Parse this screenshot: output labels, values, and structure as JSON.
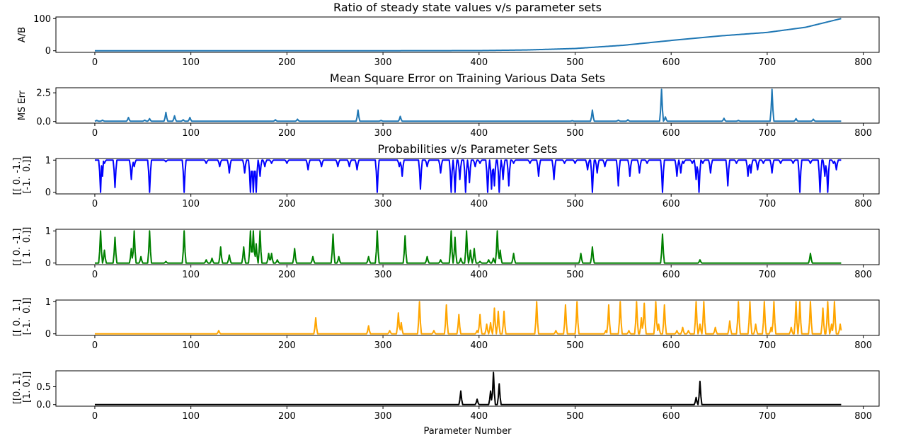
{
  "chart_data": [
    {
      "type": "line",
      "title": "Ratio of steady state values v/s parameter sets",
      "ylabel": [
        "A/B"
      ],
      "xlabel": "",
      "xlim": [
        0,
        777
      ],
      "ylim": [
        0,
        100
      ],
      "yticks": [
        0,
        100
      ],
      "xticks": [
        0,
        100,
        200,
        300,
        400,
        500,
        600,
        700,
        800
      ],
      "series": [
        {
          "color": "#1f77b4",
          "kind": "smooth",
          "points": [
            [
              0,
              0
            ],
            [
              300,
              0
            ],
            [
              400,
              0.5
            ],
            [
              450,
              2.5
            ],
            [
              500,
              7
            ],
            [
              550,
              17
            ],
            [
              600,
              32
            ],
            [
              650,
              46
            ],
            [
              700,
              57
            ],
            [
              740,
              73
            ],
            [
              777,
              100
            ]
          ]
        }
      ]
    },
    {
      "type": "line",
      "title": "Mean Square Error on Training Various Data Sets",
      "ylabel": [
        "MS Err"
      ],
      "xlabel": "",
      "xlim": [
        0,
        777
      ],
      "ylim": [
        0,
        2.8
      ],
      "yticks": [
        0.0,
        2.5
      ],
      "ytick_labels": [
        "0.0",
        "2.5"
      ],
      "xticks": [
        0,
        100,
        200,
        300,
        400,
        500,
        600,
        700,
        800
      ],
      "series": [
        {
          "color": "#1f77b4",
          "kind": "spikes",
          "baseline": 0.03,
          "spikes": [
            [
              2,
              0.1
            ],
            [
              8,
              0.12
            ],
            [
              35,
              0.35
            ],
            [
              52,
              0.12
            ],
            [
              57,
              0.25
            ],
            [
              74,
              0.8
            ],
            [
              83,
              0.5
            ],
            [
              92,
              0.15
            ],
            [
              99,
              0.35
            ],
            [
              188,
              0.15
            ],
            [
              211,
              0.2
            ],
            [
              274,
              1.0
            ],
            [
              298,
              0.1
            ],
            [
              318,
              0.45
            ],
            [
              497,
              0.07
            ],
            [
              518,
              1.0
            ],
            [
              545,
              0.12
            ],
            [
              555,
              0.15
            ],
            [
              590,
              2.8
            ],
            [
              594,
              0.4
            ],
            [
              655,
              0.28
            ],
            [
              670,
              0.1
            ],
            [
              705,
              2.8
            ],
            [
              730,
              0.25
            ],
            [
              748,
              0.2
            ]
          ]
        }
      ]
    },
    {
      "type": "line",
      "title": "Probabilities v/s Parameter Sets",
      "ylabel": [
        "[[ 0. -1.]",
        " [-1.  0.]]"
      ],
      "xlabel": "",
      "xlim": [
        0,
        777
      ],
      "ylim": [
        0,
        1
      ],
      "yticks": [
        0,
        1
      ],
      "xticks": [
        0,
        100,
        200,
        300,
        400,
        500,
        600,
        700,
        800
      ],
      "series": [
        {
          "color": "#0000ff",
          "kind": "spikes",
          "baseline": 1.0,
          "spikes": [
            [
              6,
              0
            ],
            [
              8,
              0.5
            ],
            [
              10,
              0.9
            ],
            [
              21,
              0.15
            ],
            [
              38,
              0.4
            ],
            [
              41,
              0.8
            ],
            [
              57,
              0
            ],
            [
              74,
              0.95
            ],
            [
              93,
              0
            ],
            [
              116,
              0.9
            ],
            [
              130,
              0.8
            ],
            [
              140,
              0.6
            ],
            [
              156,
              0.6
            ],
            [
              162,
              0
            ],
            [
              165,
              0
            ],
            [
              168,
              0
            ],
            [
              172,
              0.5
            ],
            [
              177,
              0.8
            ],
            [
              184,
              0.9
            ],
            [
              200,
              0.9
            ],
            [
              222,
              0.7
            ],
            [
              236,
              0.8
            ],
            [
              253,
              0.8
            ],
            [
              265,
              0.8
            ],
            [
              273,
              0.7
            ],
            [
              294,
              0
            ],
            [
              317,
              0.8
            ],
            [
              320,
              0.5
            ],
            [
              339,
              0.1
            ],
            [
              346,
              0.8
            ],
            [
              360,
              0.6
            ],
            [
              371,
              0
            ],
            [
              375,
              0
            ],
            [
              380,
              0.4
            ],
            [
              386,
              0
            ],
            [
              390,
              0.3
            ],
            [
              396,
              0.8
            ],
            [
              401,
              0.9
            ],
            [
              409,
              0
            ],
            [
              413,
              0.1
            ],
            [
              416,
              0.2
            ],
            [
              421,
              0
            ],
            [
              425,
              0.4
            ],
            [
              431,
              0.2
            ],
            [
              436,
              0.9
            ],
            [
              453,
              0.9
            ],
            [
              462,
              0.5
            ],
            [
              478,
              0.4
            ],
            [
              489,
              0.9
            ],
            [
              500,
              0.9
            ],
            [
              513,
              0.7
            ],
            [
              518,
              0
            ],
            [
              523,
              0.6
            ],
            [
              531,
              0.8
            ],
            [
              545,
              0.2
            ],
            [
              557,
              0.5
            ],
            [
              567,
              0.6
            ],
            [
              575,
              0.9
            ],
            [
              591,
              0
            ],
            [
              606,
              0.5
            ],
            [
              610,
              0.6
            ],
            [
              613,
              0.9
            ],
            [
              622,
              0.9
            ],
            [
              626,
              0.4
            ],
            [
              629,
              0
            ],
            [
              633,
              0.9
            ],
            [
              641,
              0.6
            ],
            [
              659,
              0.2
            ],
            [
              668,
              0.9
            ],
            [
              680,
              0.5
            ],
            [
              683,
              0.6
            ],
            [
              690,
              0.7
            ],
            [
              696,
              0.9
            ],
            [
              705,
              0.6
            ],
            [
              714,
              0.9
            ],
            [
              727,
              0.9
            ],
            [
              734,
              0
            ],
            [
              745,
              0.9
            ],
            [
              755,
              0
            ],
            [
              760,
              0.5
            ],
            [
              763,
              0
            ],
            [
              769,
              0.9
            ],
            [
              772,
              0.7
            ]
          ]
        }
      ]
    },
    {
      "type": "line",
      "title": "",
      "ylabel": [
        "[[ 0. -1.]",
        " [ 1.  0.]]"
      ],
      "xlabel": "",
      "xlim": [
        0,
        777
      ],
      "ylim": [
        0,
        1
      ],
      "yticks": [
        0,
        1
      ],
      "xticks": [
        0,
        100,
        200,
        300,
        400,
        500,
        600,
        700,
        800
      ],
      "series": [
        {
          "color": "#008000",
          "kind": "spikes",
          "baseline": 0.0,
          "spikes": [
            [
              6,
              1.0
            ],
            [
              10,
              0.4
            ],
            [
              21,
              0.8
            ],
            [
              38,
              0.45
            ],
            [
              41,
              1.0
            ],
            [
              48,
              0.2
            ],
            [
              57,
              1.0
            ],
            [
              74,
              0.05
            ],
            [
              93,
              1.0
            ],
            [
              116,
              0.1
            ],
            [
              122,
              0.15
            ],
            [
              131,
              0.5
            ],
            [
              140,
              0.25
            ],
            [
              155,
              0.5
            ],
            [
              162,
              1.0
            ],
            [
              165,
              1.0
            ],
            [
              168,
              0.6
            ],
            [
              172,
              1.0
            ],
            [
              181,
              0.3
            ],
            [
              184,
              0.3
            ],
            [
              190,
              0.1
            ],
            [
              208,
              0.45
            ],
            [
              227,
              0.2
            ],
            [
              248,
              0.9
            ],
            [
              254,
              0.2
            ],
            [
              285,
              0.2
            ],
            [
              294,
              1.0
            ],
            [
              323,
              0.85
            ],
            [
              346,
              0.2
            ],
            [
              360,
              0.1
            ],
            [
              371,
              1.0
            ],
            [
              375,
              0.8
            ],
            [
              381,
              0.15
            ],
            [
              387,
              1.0
            ],
            [
              391,
              0.4
            ],
            [
              395,
              0.45
            ],
            [
              401,
              0.05
            ],
            [
              410,
              0.1
            ],
            [
              415,
              0.15
            ],
            [
              419,
              1.0
            ],
            [
              422,
              0.4
            ],
            [
              436,
              0.3
            ],
            [
              506,
              0.3
            ],
            [
              518,
              0.5
            ],
            [
              591,
              0.9
            ],
            [
              630,
              0.1
            ],
            [
              745,
              0.3
            ]
          ]
        }
      ]
    },
    {
      "type": "line",
      "title": "",
      "ylabel": [
        "[[ 0.  1.]",
        " [-1.  0.]]"
      ],
      "xlabel": "",
      "xlim": [
        0,
        777
      ],
      "ylim": [
        0,
        1
      ],
      "yticks": [
        0,
        1
      ],
      "xticks": [
        0,
        100,
        200,
        300,
        400,
        500,
        600,
        700,
        800
      ],
      "series": [
        {
          "color": "#ffa500",
          "kind": "spikes",
          "baseline": 0.0,
          "spikes": [
            [
              129,
              0.1
            ],
            [
              230,
              0.5
            ],
            [
              285,
              0.25
            ],
            [
              307,
              0.1
            ],
            [
              316,
              0.65
            ],
            [
              319,
              0.35
            ],
            [
              338,
              1.0
            ],
            [
              353,
              0.1
            ],
            [
              366,
              0.9
            ],
            [
              379,
              0.6
            ],
            [
              398,
              0.1
            ],
            [
              401,
              0.6
            ],
            [
              408,
              0.3
            ],
            [
              412,
              0.35
            ],
            [
              416,
              0.8
            ],
            [
              420,
              0.7
            ],
            [
              426,
              0.7
            ],
            [
              460,
              1.0
            ],
            [
              480,
              0.1
            ],
            [
              490,
              0.9
            ],
            [
              502,
              1.0
            ],
            [
              532,
              0.1
            ],
            [
              535,
              0.9
            ],
            [
              547,
              1.0
            ],
            [
              556,
              0.1
            ],
            [
              564,
              1.0
            ],
            [
              569,
              0.5
            ],
            [
              572,
              0.95
            ],
            [
              584,
              1.0
            ],
            [
              587,
              0.3
            ],
            [
              593,
              0.9
            ],
            [
              606,
              0.1
            ],
            [
              612,
              0.2
            ],
            [
              618,
              0.1
            ],
            [
              626,
              1.0
            ],
            [
              630,
              0.3
            ],
            [
              634,
              1.0
            ],
            [
              646,
              0.2
            ],
            [
              661,
              0.4
            ],
            [
              670,
              1.0
            ],
            [
              682,
              1.0
            ],
            [
              688,
              0.3
            ],
            [
              697,
              1.0
            ],
            [
              704,
              0.2
            ],
            [
              707,
              1.0
            ],
            [
              725,
              0.2
            ],
            [
              730,
              1.0
            ],
            [
              734,
              1.0
            ],
            [
              745,
              1.0
            ],
            [
              758,
              0.8
            ],
            [
              763,
              1.0
            ],
            [
              767,
              0.3
            ],
            [
              770,
              1.0
            ],
            [
              776,
              0.3
            ]
          ]
        }
      ]
    },
    {
      "type": "line",
      "title": "",
      "ylabel": [
        "[[0. 1.]",
        " [1. 0.]]"
      ],
      "xlabel": "Parameter Number",
      "xlim": [
        0,
        777
      ],
      "ylim": [
        0,
        0.9
      ],
      "yticks": [
        0.0,
        0.5
      ],
      "ytick_labels": [
        "0.0",
        "0.5"
      ],
      "xticks": [
        0,
        100,
        200,
        300,
        400,
        500,
        600,
        700,
        800
      ],
      "series": [
        {
          "color": "#000000",
          "kind": "spikes",
          "baseline": 0.0,
          "spikes": [
            [
              381,
              0.38
            ],
            [
              398,
              0.15
            ],
            [
              412,
              0.38
            ],
            [
              415,
              0.9
            ],
            [
              421,
              0.58
            ],
            [
              626,
              0.2
            ],
            [
              630,
              0.65
            ]
          ]
        }
      ]
    }
  ]
}
